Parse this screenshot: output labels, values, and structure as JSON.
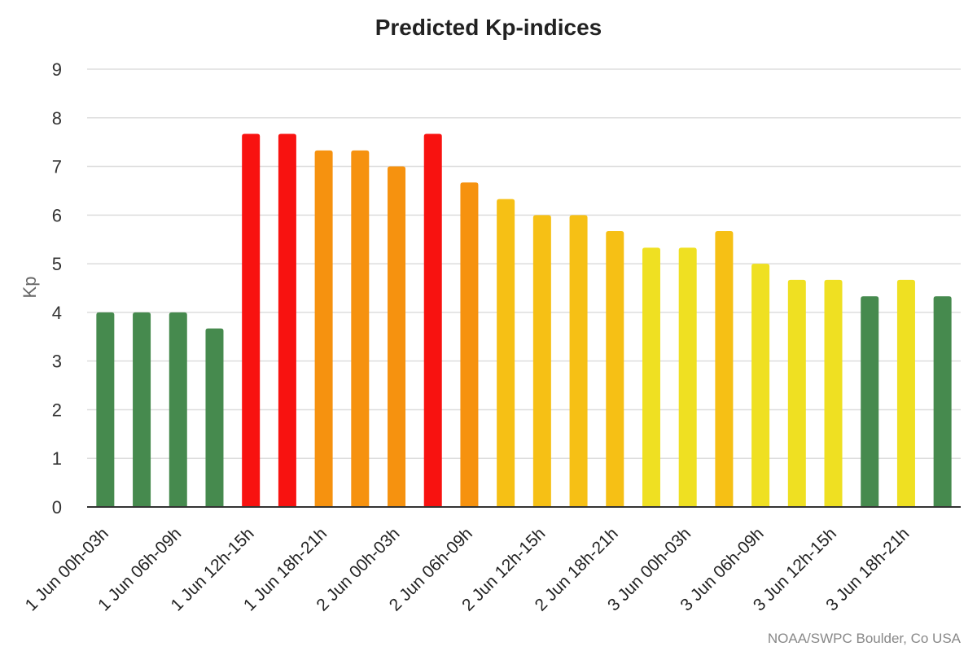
{
  "chart_data": {
    "type": "bar",
    "title": "Predicted Kp-indices",
    "xlabel": "",
    "ylabel": "Kp",
    "ylim": [
      0,
      9
    ],
    "yticks": [
      0,
      1,
      2,
      3,
      4,
      5,
      6,
      7,
      8,
      9
    ],
    "grid": true,
    "legend": "none",
    "categories": [
      "1 Jun 00h-03h",
      "1 Jun 03h-06h",
      "1 Jun 06h-09h",
      "1 Jun 09h-12h",
      "1 Jun 12h-15h",
      "1 Jun 15h-18h",
      "1 Jun 18h-21h",
      "1 Jun 21h-00h",
      "2 Jun 00h-03h",
      "2 Jun 03h-06h",
      "2 Jun 06h-09h",
      "2 Jun 09h-12h",
      "2 Jun 12h-15h",
      "2 Jun 15h-18h",
      "2 Jun 18h-21h",
      "2 Jun 21h-00h",
      "3 Jun 00h-03h",
      "3 Jun 03h-06h",
      "3 Jun 06h-09h",
      "3 Jun 09h-12h",
      "3 Jun 12h-15h",
      "3 Jun 15h-18h",
      "3 Jun 18h-21h",
      "3 Jun 21h-00h"
    ],
    "visible_tick_labels": [
      "1 Jun 00h-03h",
      "1 Jun 06h-09h",
      "1 Jun 12h-15h",
      "1 Jun 18h-21h",
      "2 Jun 00h-03h",
      "2 Jun 06h-09h",
      "2 Jun 12h-15h",
      "2 Jun 18h-21h",
      "3 Jun 00h-03h",
      "3 Jun 06h-09h",
      "3 Jun 12h-15h",
      "3 Jun 18h-21h"
    ],
    "values": [
      4.0,
      4.0,
      4.0,
      3.67,
      7.67,
      7.67,
      7.33,
      7.33,
      7.0,
      7.67,
      6.67,
      6.33,
      6.0,
      6.0,
      5.67,
      5.33,
      5.33,
      5.67,
      5.0,
      4.67,
      4.67,
      4.33,
      4.67,
      4.33
    ],
    "bar_colors": [
      "#468a4e",
      "#468a4e",
      "#468a4e",
      "#468a4e",
      "#f81210",
      "#f81210",
      "#f6920f",
      "#f6920f",
      "#f6920f",
      "#f81210",
      "#f6920f",
      "#f6c015",
      "#f6c015",
      "#f6c015",
      "#f6c015",
      "#efe022",
      "#efe022",
      "#f6c015",
      "#efe022",
      "#efe022",
      "#efe022",
      "#468a4e",
      "#efe022",
      "#468a4e"
    ]
  },
  "credit": "NOAA/SWPC Boulder, Co USA"
}
